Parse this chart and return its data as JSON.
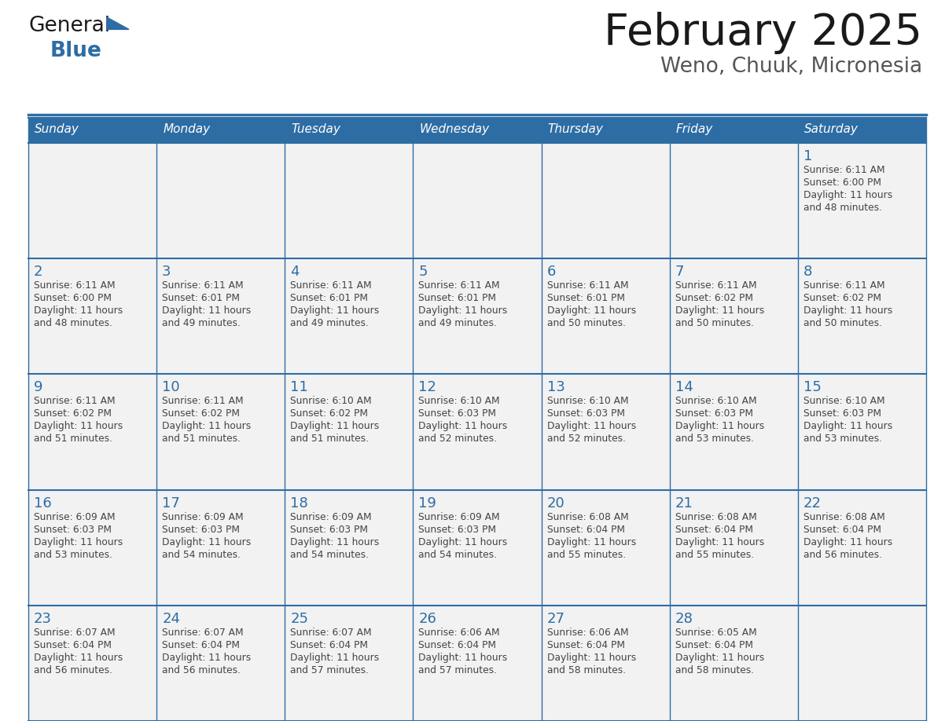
{
  "title": "February 2025",
  "subtitle": "Weno, Chuuk, Micronesia",
  "days_of_week": [
    "Sunday",
    "Monday",
    "Tuesday",
    "Wednesday",
    "Thursday",
    "Friday",
    "Saturday"
  ],
  "header_bg": "#2E6DA4",
  "header_text": "#FFFFFF",
  "cell_bg": "#F2F2F2",
  "border_color": "#2E6DA4",
  "day_num_color": "#2E6DA4",
  "text_color": "#444444",
  "logo_general_color": "#1A1A1A",
  "logo_blue_color": "#2E6DA4",
  "title_color": "#1A1A1A",
  "subtitle_color": "#555555",
  "calendar_data": [
    [
      null,
      null,
      null,
      null,
      null,
      null,
      {
        "day": 1,
        "sunrise": "6:11 AM",
        "sunset": "6:00 PM",
        "daylight": "11 hours and 48 minutes."
      }
    ],
    [
      {
        "day": 2,
        "sunrise": "6:11 AM",
        "sunset": "6:00 PM",
        "daylight": "11 hours and 48 minutes."
      },
      {
        "day": 3,
        "sunrise": "6:11 AM",
        "sunset": "6:01 PM",
        "daylight": "11 hours and 49 minutes."
      },
      {
        "day": 4,
        "sunrise": "6:11 AM",
        "sunset": "6:01 PM",
        "daylight": "11 hours and 49 minutes."
      },
      {
        "day": 5,
        "sunrise": "6:11 AM",
        "sunset": "6:01 PM",
        "daylight": "11 hours and 49 minutes."
      },
      {
        "day": 6,
        "sunrise": "6:11 AM",
        "sunset": "6:01 PM",
        "daylight": "11 hours and 50 minutes."
      },
      {
        "day": 7,
        "sunrise": "6:11 AM",
        "sunset": "6:02 PM",
        "daylight": "11 hours and 50 minutes."
      },
      {
        "day": 8,
        "sunrise": "6:11 AM",
        "sunset": "6:02 PM",
        "daylight": "11 hours and 50 minutes."
      }
    ],
    [
      {
        "day": 9,
        "sunrise": "6:11 AM",
        "sunset": "6:02 PM",
        "daylight": "11 hours and 51 minutes."
      },
      {
        "day": 10,
        "sunrise": "6:11 AM",
        "sunset": "6:02 PM",
        "daylight": "11 hours and 51 minutes."
      },
      {
        "day": 11,
        "sunrise": "6:10 AM",
        "sunset": "6:02 PM",
        "daylight": "11 hours and 51 minutes."
      },
      {
        "day": 12,
        "sunrise": "6:10 AM",
        "sunset": "6:03 PM",
        "daylight": "11 hours and 52 minutes."
      },
      {
        "day": 13,
        "sunrise": "6:10 AM",
        "sunset": "6:03 PM",
        "daylight": "11 hours and 52 minutes."
      },
      {
        "day": 14,
        "sunrise": "6:10 AM",
        "sunset": "6:03 PM",
        "daylight": "11 hours and 53 minutes."
      },
      {
        "day": 15,
        "sunrise": "6:10 AM",
        "sunset": "6:03 PM",
        "daylight": "11 hours and 53 minutes."
      }
    ],
    [
      {
        "day": 16,
        "sunrise": "6:09 AM",
        "sunset": "6:03 PM",
        "daylight": "11 hours and 53 minutes."
      },
      {
        "day": 17,
        "sunrise": "6:09 AM",
        "sunset": "6:03 PM",
        "daylight": "11 hours and 54 minutes."
      },
      {
        "day": 18,
        "sunrise": "6:09 AM",
        "sunset": "6:03 PM",
        "daylight": "11 hours and 54 minutes."
      },
      {
        "day": 19,
        "sunrise": "6:09 AM",
        "sunset": "6:03 PM",
        "daylight": "11 hours and 54 minutes."
      },
      {
        "day": 20,
        "sunrise": "6:08 AM",
        "sunset": "6:04 PM",
        "daylight": "11 hours and 55 minutes."
      },
      {
        "day": 21,
        "sunrise": "6:08 AM",
        "sunset": "6:04 PM",
        "daylight": "11 hours and 55 minutes."
      },
      {
        "day": 22,
        "sunrise": "6:08 AM",
        "sunset": "6:04 PM",
        "daylight": "11 hours and 56 minutes."
      }
    ],
    [
      {
        "day": 23,
        "sunrise": "6:07 AM",
        "sunset": "6:04 PM",
        "daylight": "11 hours and 56 minutes."
      },
      {
        "day": 24,
        "sunrise": "6:07 AM",
        "sunset": "6:04 PM",
        "daylight": "11 hours and 56 minutes."
      },
      {
        "day": 25,
        "sunrise": "6:07 AM",
        "sunset": "6:04 PM",
        "daylight": "11 hours and 57 minutes."
      },
      {
        "day": 26,
        "sunrise": "6:06 AM",
        "sunset": "6:04 PM",
        "daylight": "11 hours and 57 minutes."
      },
      {
        "day": 27,
        "sunrise": "6:06 AM",
        "sunset": "6:04 PM",
        "daylight": "11 hours and 58 minutes."
      },
      {
        "day": 28,
        "sunrise": "6:05 AM",
        "sunset": "6:04 PM",
        "daylight": "11 hours and 58 minutes."
      },
      null
    ]
  ]
}
